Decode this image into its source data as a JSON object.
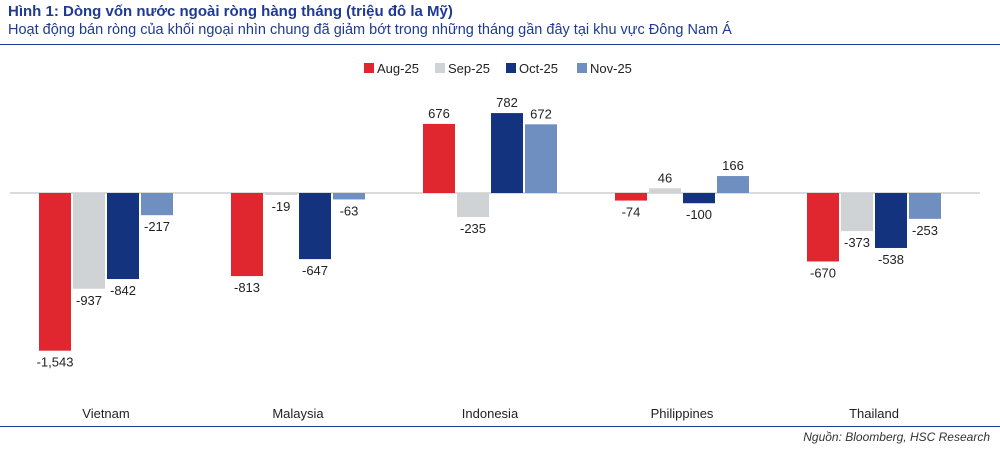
{
  "header": {
    "title": "Hình 1: Dòng vốn nước ngoài ròng hàng tháng (triệu đô la Mỹ)",
    "subtitle": "Hoạt động bán ròng của khối ngoại nhìn chung đã giảm bớt trong những tháng gần đây tại khu vực Đông Nam Á"
  },
  "footer": {
    "source": "Nguồn: Bloomberg, HSC Research"
  },
  "chart_data": {
    "type": "bar",
    "title": "Hình 1: Dòng vốn nước ngoài ròng hàng tháng (triệu đô la Mỹ)",
    "xlabel": "",
    "ylabel": "",
    "ylim": [
      -1700,
      1000
    ],
    "grid": false,
    "legend": "top-center",
    "categories": [
      "Vietnam",
      "Malaysia",
      "Indonesia",
      "Philippines",
      "Thailand"
    ],
    "series": [
      {
        "name": "Aug-25",
        "color": "#e0262f",
        "values": [
          -1543,
          -813,
          676,
          -74,
          -670
        ],
        "labels": [
          "-1,543",
          "-813",
          "676",
          "-74",
          "-670"
        ]
      },
      {
        "name": "Sep-25",
        "color": "#d0d3d6",
        "values": [
          -937,
          -19,
          -235,
          46,
          -373
        ],
        "labels": [
          "-937",
          "-19",
          "-235",
          "46",
          "-373"
        ]
      },
      {
        "name": "Oct-25",
        "color": "#14337f",
        "values": [
          -842,
          -647,
          782,
          -100,
          -538
        ],
        "labels": [
          "-842",
          "-647",
          "782",
          "-100",
          "-538"
        ]
      },
      {
        "name": "Nov-25",
        "color": "#6f8fc0",
        "values": [
          -217,
          -63,
          672,
          166,
          -253
        ],
        "labels": [
          "-217",
          "-63",
          "672",
          "166",
          "-253"
        ]
      }
    ]
  }
}
